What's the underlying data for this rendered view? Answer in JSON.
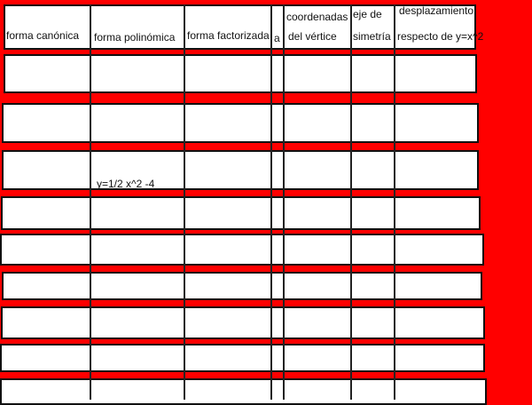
{
  "background_color": "#ff0000",
  "header": {
    "col1": "forma canónica",
    "col2": "forma polinómica",
    "col3": "forma factorizada",
    "col4": "a",
    "col5_line1": "coordenadas",
    "col5_line2": "del vértice",
    "col6_line1": "eje de",
    "col6_line2": "simetría",
    "col7_line1": "desplazamiento",
    "col7_line2": "respecto de y=x^2"
  },
  "rows": [
    {
      "polinomica": ""
    },
    {
      "polinomica": ""
    },
    {
      "polinomica": "y=1/2 x^2 -4"
    }
  ]
}
